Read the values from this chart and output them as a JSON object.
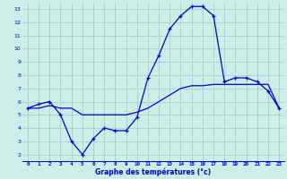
{
  "title": "Graphe des températures (°c)",
  "background_color": "#cceee8",
  "grid_color": "#aad4cc",
  "line_color": "#0000cc",
  "xlim": [
    -0.5,
    23.5
  ],
  "ylim": [
    1.5,
    13.5
  ],
  "xticks": [
    0,
    1,
    2,
    3,
    4,
    5,
    6,
    7,
    8,
    9,
    10,
    11,
    12,
    13,
    14,
    15,
    16,
    17,
    18,
    19,
    20,
    21,
    22,
    23
  ],
  "yticks": [
    2,
    3,
    4,
    5,
    6,
    7,
    8,
    9,
    10,
    11,
    12,
    13
  ],
  "line1_x": [
    0,
    1,
    2,
    3,
    4,
    5,
    6,
    7,
    8,
    9,
    10,
    11,
    12,
    13,
    14,
    15,
    16,
    17,
    18,
    19,
    20,
    21,
    22,
    23
  ],
  "line1_y": [
    5.5,
    5.5,
    5.7,
    5.5,
    5.5,
    5.0,
    5.0,
    5.0,
    5.0,
    5.0,
    5.2,
    5.5,
    6.0,
    6.5,
    7.0,
    7.2,
    7.2,
    7.3,
    7.3,
    7.3,
    7.3,
    7.3,
    7.3,
    5.5
  ],
  "line2_x": [
    0,
    1,
    2,
    3,
    4,
    5,
    6,
    7,
    8,
    9,
    10,
    11,
    12,
    13,
    14,
    15,
    16,
    17,
    18,
    19,
    20,
    21,
    22,
    23
  ],
  "line2_y": [
    5.5,
    5.8,
    6.0,
    5.0,
    3.0,
    2.0,
    3.2,
    4.0,
    3.8,
    3.8,
    4.8,
    7.8,
    9.5,
    11.5,
    12.5,
    13.2,
    13.2,
    12.5,
    7.5,
    7.8,
    7.8,
    7.5,
    6.8,
    5.5
  ]
}
